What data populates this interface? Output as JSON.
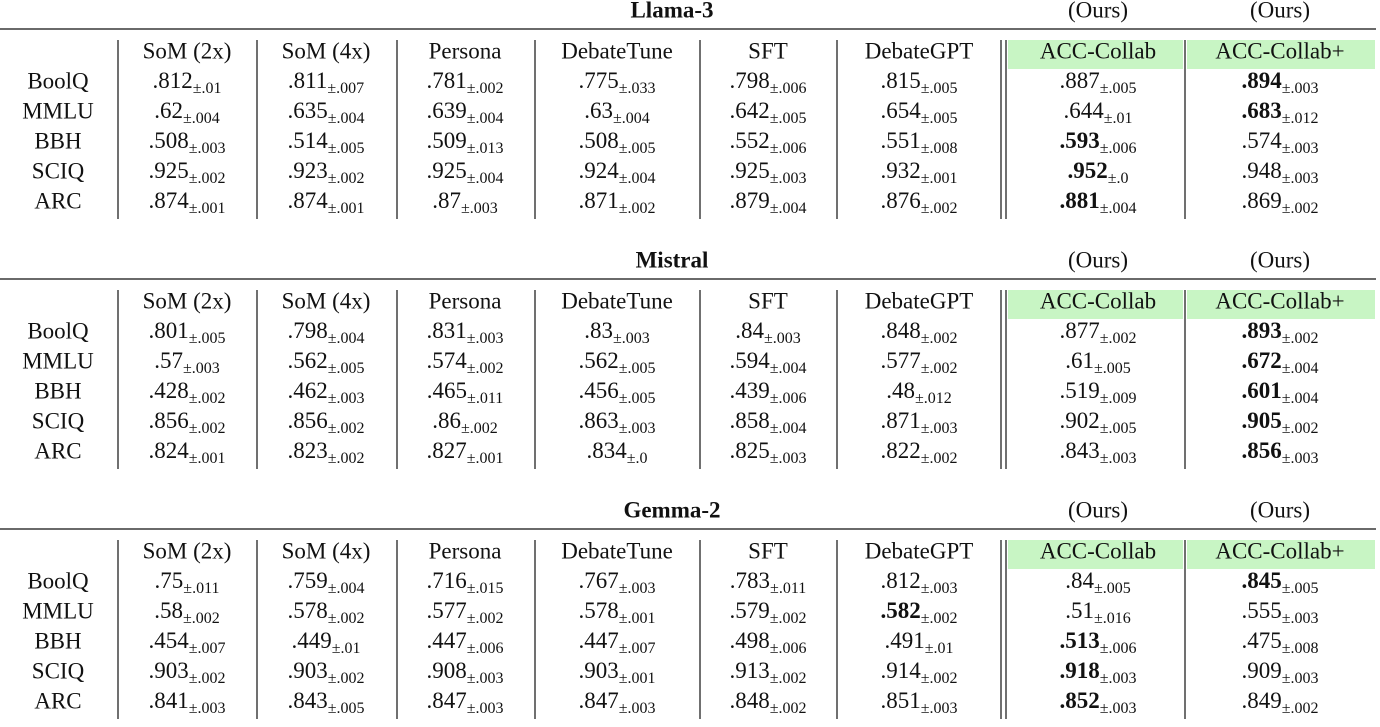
{
  "tables": [
    {
      "title": "Llama-3",
      "ours": [
        "(Ours)",
        "(Ours)"
      ],
      "columns": [
        "SoM (2x)",
        "SoM (4x)",
        "Persona",
        "DebateTune",
        "SFT",
        "DebateGPT",
        "ACC-Collab",
        "ACC-Collab+"
      ],
      "rows": [
        {
          "name": "BoolQ",
          "cells": [
            {
              "m": ".812",
              "s": "±.01"
            },
            {
              "m": ".811",
              "s": "±.007"
            },
            {
              "m": ".781",
              "s": "±.002"
            },
            {
              "m": ".775",
              "s": "±.033"
            },
            {
              "m": ".798",
              "s": "±.006"
            },
            {
              "m": ".815",
              "s": "±.005"
            },
            {
              "m": ".887",
              "s": "±.005"
            },
            {
              "m": ".894",
              "s": "±.003",
              "bold": true
            }
          ]
        },
        {
          "name": "MMLU",
          "cells": [
            {
              "m": ".62",
              "s": "±.004"
            },
            {
              "m": ".635",
              "s": "±.004"
            },
            {
              "m": ".639",
              "s": "±.004"
            },
            {
              "m": ".63",
              "s": "±.004"
            },
            {
              "m": ".642",
              "s": "±.005"
            },
            {
              "m": ".654",
              "s": "±.005"
            },
            {
              "m": ".644",
              "s": "±.01"
            },
            {
              "m": ".683",
              "s": "±.012",
              "bold": true
            }
          ]
        },
        {
          "name": "BBH",
          "cells": [
            {
              "m": ".508",
              "s": "±.003"
            },
            {
              "m": ".514",
              "s": "±.005"
            },
            {
              "m": ".509",
              "s": "±.013"
            },
            {
              "m": ".508",
              "s": "±.005"
            },
            {
              "m": ".552",
              "s": "±.006"
            },
            {
              "m": ".551",
              "s": "±.008"
            },
            {
              "m": ".593",
              "s": "±.006",
              "bold": true
            },
            {
              "m": ".574",
              "s": "±.003"
            }
          ]
        },
        {
          "name": "SCIQ",
          "cells": [
            {
              "m": ".925",
              "s": "±.002"
            },
            {
              "m": ".923",
              "s": "±.002"
            },
            {
              "m": ".925",
              "s": "±.004"
            },
            {
              "m": ".924",
              "s": "±.004"
            },
            {
              "m": ".925",
              "s": "±.003"
            },
            {
              "m": ".932",
              "s": "±.001"
            },
            {
              "m": ".952",
              "s": "±.0",
              "bold": true
            },
            {
              "m": ".948",
              "s": "±.003"
            }
          ]
        },
        {
          "name": "ARC",
          "cells": [
            {
              "m": ".874",
              "s": "±.001"
            },
            {
              "m": ".874",
              "s": "±.001"
            },
            {
              "m": ".87",
              "s": "±.003"
            },
            {
              "m": ".871",
              "s": "±.002"
            },
            {
              "m": ".879",
              "s": "±.004"
            },
            {
              "m": ".876",
              "s": "±.002"
            },
            {
              "m": ".881",
              "s": "±.004",
              "bold": true
            },
            {
              "m": ".869",
              "s": "±.002"
            }
          ]
        }
      ]
    },
    {
      "title": "Mistral",
      "ours": [
        "(Ours)",
        "(Ours)"
      ],
      "columns": [
        "SoM (2x)",
        "SoM (4x)",
        "Persona",
        "DebateTune",
        "SFT",
        "DebateGPT",
        "ACC-Collab",
        "ACC-Collab+"
      ],
      "rows": [
        {
          "name": "BoolQ",
          "cells": [
            {
              "m": ".801",
              "s": "±.005"
            },
            {
              "m": ".798",
              "s": "±.004"
            },
            {
              "m": ".831",
              "s": "±.003"
            },
            {
              "m": ".83",
              "s": "±.003"
            },
            {
              "m": ".84",
              "s": "±.003"
            },
            {
              "m": ".848",
              "s": "±.002"
            },
            {
              "m": ".877",
              "s": "±.002"
            },
            {
              "m": ".893",
              "s": "±.002",
              "bold": true
            }
          ]
        },
        {
          "name": "MMLU",
          "cells": [
            {
              "m": ".57",
              "s": "±.003"
            },
            {
              "m": ".562",
              "s": "±.005"
            },
            {
              "m": ".574",
              "s": "±.002"
            },
            {
              "m": ".562",
              "s": "±.005"
            },
            {
              "m": ".594",
              "s": "±.004"
            },
            {
              "m": ".577",
              "s": "±.002"
            },
            {
              "m": ".61",
              "s": "±.005"
            },
            {
              "m": ".672",
              "s": "±.004",
              "bold": true
            }
          ]
        },
        {
          "name": "BBH",
          "cells": [
            {
              "m": ".428",
              "s": "±.002"
            },
            {
              "m": ".462",
              "s": "±.003"
            },
            {
              "m": ".465",
              "s": "±.011"
            },
            {
              "m": ".456",
              "s": "±.005"
            },
            {
              "m": ".439",
              "s": "±.006"
            },
            {
              "m": ".48",
              "s": "±.012"
            },
            {
              "m": ".519",
              "s": "±.009"
            },
            {
              "m": ".601",
              "s": "±.004",
              "bold": true
            }
          ]
        },
        {
          "name": "SCIQ",
          "cells": [
            {
              "m": ".856",
              "s": "±.002"
            },
            {
              "m": ".856",
              "s": "±.002"
            },
            {
              "m": ".86",
              "s": "±.002"
            },
            {
              "m": ".863",
              "s": "±.003"
            },
            {
              "m": ".858",
              "s": "±.004"
            },
            {
              "m": ".871",
              "s": "±.003"
            },
            {
              "m": ".902",
              "s": "±.005"
            },
            {
              "m": ".905",
              "s": "±.002",
              "bold": true
            }
          ]
        },
        {
          "name": "ARC",
          "cells": [
            {
              "m": ".824",
              "s": "±.001"
            },
            {
              "m": ".823",
              "s": "±.002"
            },
            {
              "m": ".827",
              "s": "±.001"
            },
            {
              "m": ".834",
              "s": "±.0"
            },
            {
              "m": ".825",
              "s": "±.003"
            },
            {
              "m": ".822",
              "s": "±.002"
            },
            {
              "m": ".843",
              "s": "±.003"
            },
            {
              "m": ".856",
              "s": "±.003",
              "bold": true
            }
          ]
        }
      ]
    },
    {
      "title": "Gemma-2",
      "ours": [
        "(Ours)",
        "(Ours)"
      ],
      "columns": [
        "SoM (2x)",
        "SoM (4x)",
        "Persona",
        "DebateTune",
        "SFT",
        "DebateGPT",
        "ACC-Collab",
        "ACC-Collab+"
      ],
      "rows": [
        {
          "name": "BoolQ",
          "cells": [
            {
              "m": ".75",
              "s": "±.011"
            },
            {
              "m": ".759",
              "s": "±.004"
            },
            {
              "m": ".716",
              "s": "±.015"
            },
            {
              "m": ".767",
              "s": "±.003"
            },
            {
              "m": ".783",
              "s": "±.011"
            },
            {
              "m": ".812",
              "s": "±.003"
            },
            {
              "m": ".84",
              "s": "±.005"
            },
            {
              "m": ".845",
              "s": "±.005",
              "bold": true
            }
          ]
        },
        {
          "name": "MMLU",
          "cells": [
            {
              "m": ".58",
              "s": "±.002"
            },
            {
              "m": ".578",
              "s": "±.002"
            },
            {
              "m": ".577",
              "s": "±.002"
            },
            {
              "m": ".578",
              "s": "±.001"
            },
            {
              "m": ".579",
              "s": "±.002"
            },
            {
              "m": ".582",
              "s": "±.002",
              "bold": true
            },
            {
              "m": ".51",
              "s": "±.016"
            },
            {
              "m": ".555",
              "s": "±.003"
            }
          ]
        },
        {
          "name": "BBH",
          "cells": [
            {
              "m": ".454",
              "s": "±.007"
            },
            {
              "m": ".449",
              "s": "±.01"
            },
            {
              "m": ".447",
              "s": "±.006"
            },
            {
              "m": ".447",
              "s": "±.007"
            },
            {
              "m": ".498",
              "s": "±.006"
            },
            {
              "m": ".491",
              "s": "±.01"
            },
            {
              "m": ".513",
              "s": "±.006",
              "bold": true
            },
            {
              "m": ".475",
              "s": "±.008"
            }
          ]
        },
        {
          "name": "SCIQ",
          "cells": [
            {
              "m": ".903",
              "s": "±.002"
            },
            {
              "m": ".903",
              "s": "±.002"
            },
            {
              "m": ".908",
              "s": "±.003"
            },
            {
              "m": ".903",
              "s": "±.001"
            },
            {
              "m": ".913",
              "s": "±.002"
            },
            {
              "m": ".914",
              "s": "±.002"
            },
            {
              "m": ".918",
              "s": "±.003",
              "bold": true
            },
            {
              "m": ".909",
              "s": "±.003"
            }
          ]
        },
        {
          "name": "ARC",
          "cells": [
            {
              "m": ".841",
              "s": "±.003"
            },
            {
              "m": ".843",
              "s": "±.005"
            },
            {
              "m": ".847",
              "s": "±.003"
            },
            {
              "m": ".847",
              "s": "±.003"
            },
            {
              "m": ".848",
              "s": "±.002"
            },
            {
              "m": ".851",
              "s": "±.003"
            },
            {
              "m": ".852",
              "s": "±.003",
              "bold": true
            },
            {
              "m": ".849",
              "s": "±.002"
            }
          ]
        }
      ]
    }
  ]
}
